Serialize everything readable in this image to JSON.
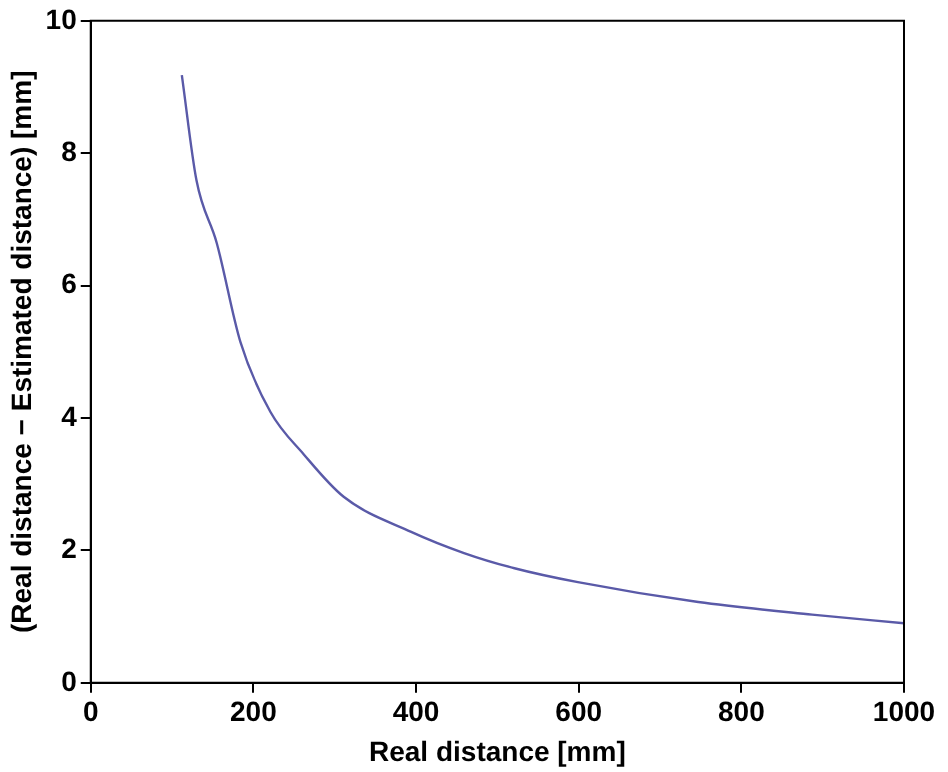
{
  "chart_data": {
    "type": "line",
    "xlabel": "Real distance [mm]",
    "ylabel": "(Real distance − Estimated distance) [mm]",
    "x": [
      112,
      130,
      155,
      184,
      221,
      262,
      311,
      394,
      459,
      521,
      599,
      747,
      887,
      1000
    ],
    "series": [
      {
        "color": "#5a5aa8",
        "values": [
          9.18,
          7.59,
          6.64,
          5.15,
          4.09,
          3.45,
          2.81,
          2.28,
          1.96,
          1.73,
          1.52,
          1.22,
          1.03,
          0.9
        ]
      }
    ],
    "xlim": [
      0,
      1000
    ],
    "ylim": [
      0,
      10
    ],
    "xticks": [
      0,
      200,
      400,
      600,
      800,
      1000
    ],
    "yticks": [
      0,
      2,
      4,
      6,
      8,
      10
    ],
    "grid": false,
    "marker": "none",
    "line_style": "solid"
  }
}
